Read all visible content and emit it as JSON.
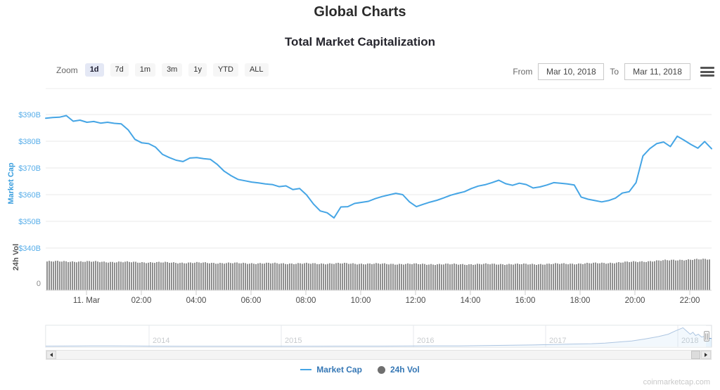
{
  "header": {
    "title": "Global Charts",
    "subtitle": "Total Market Capitalization"
  },
  "toolbar": {
    "zoom_label": "Zoom",
    "zoom_buttons": [
      {
        "label": "1d",
        "selected": true
      },
      {
        "label": "7d",
        "selected": false
      },
      {
        "label": "1m",
        "selected": false
      },
      {
        "label": "3m",
        "selected": false
      },
      {
        "label": "1y",
        "selected": false
      },
      {
        "label": "YTD",
        "selected": false
      },
      {
        "label": "ALL",
        "selected": false
      }
    ],
    "from_label": "From",
    "from_value": "Mar 10, 2018",
    "to_label": "To",
    "to_value": "Mar 11, 2018"
  },
  "legend": {
    "market_cap_label": "Market Cap",
    "vol_label": "24h Vol"
  },
  "watermark": "coinmarketcap.com",
  "colors": {
    "line_blue": "#45a5e5",
    "y_label_blue": "#56ade9",
    "y_title_blue": "#3a9ede",
    "volume_bar_gray": "#8f8f8f",
    "grid_gray": "#e8e8e8",
    "x_label_gray": "#4a4a4a",
    "year_label_gray": "#9aa0a6",
    "legend_text_blue": "#3577b5",
    "selected_zoom_bg": "#e4e8f5"
  },
  "chart_data": {
    "type": "line",
    "title": "Global Charts",
    "subtitle": "Total Market Capitalization",
    "legend_position": "bottom-center",
    "grid": "horizontal-only",
    "y_axis": {
      "title": "Market Cap",
      "tick_values": [
        390,
        380,
        370,
        360,
        350,
        340
      ],
      "tick_labels": [
        "$390B",
        "$380B",
        "$370B",
        "$360B",
        "$350B",
        "$340B"
      ],
      "unit": "USD billions",
      "ylim_shown": [
        340,
        395
      ]
    },
    "y2_axis": {
      "title": "24h Vol",
      "tick_labels": [
        "0"
      ]
    },
    "x_axis": {
      "tick_labels": [
        "11. Mar",
        "02:00",
        "04:00",
        "06:00",
        "08:00",
        "10:00",
        "12:00",
        "14:00",
        "16:00",
        "18:00",
        "20:00",
        "22:00"
      ],
      "range": "Mar 10 2018 22:30 to Mar 11 2018 22:45"
    },
    "market_cap_series": {
      "name": "Market Cap",
      "start": "Mar 10 2018 22:30",
      "interval_minutes": 15,
      "unit": "USD billions",
      "values": [
        388.6,
        388.9,
        389.0,
        389.6,
        387.5,
        387.9,
        387.1,
        387.4,
        386.8,
        387.1,
        386.7,
        386.5,
        384.3,
        380.7,
        379.4,
        379.1,
        377.8,
        375.1,
        373.9,
        372.9,
        372.4,
        373.7,
        373.9,
        373.5,
        373.2,
        371.3,
        368.8,
        367.1,
        365.7,
        365.2,
        364.7,
        364.4,
        364.0,
        363.8,
        363.0,
        363.3,
        361.9,
        362.3,
        359.9,
        356.5,
        353.9,
        353.2,
        351.3,
        355.4,
        355.5,
        356.7,
        357.1,
        357.5,
        358.5,
        359.3,
        359.9,
        360.5,
        360.0,
        357.3,
        355.5,
        356.4,
        357.2,
        357.9,
        358.8,
        359.8,
        360.5,
        361.1,
        362.3,
        363.2,
        363.7,
        364.5,
        365.4,
        364.1,
        363.5,
        364.3,
        363.8,
        362.5,
        362.9,
        363.6,
        364.5,
        364.3,
        364.0,
        363.6,
        359.1,
        358.3,
        357.8,
        357.3,
        357.8,
        358.7,
        360.6,
        361.1,
        364.5,
        374.5,
        377.2,
        379.1,
        379.7,
        378.0,
        381.9,
        380.4,
        378.8,
        377.4,
        379.9,
        377.2
      ]
    },
    "volume_series": {
      "name": "24h Vol",
      "note": "volume axis shows only the 0 label; bar heights are relative, sampled hourly",
      "relative_heights": [
        0.93,
        0.93,
        0.92,
        0.91,
        0.9,
        0.89,
        0.885,
        0.875,
        0.87,
        0.865,
        0.86,
        0.865,
        0.855,
        0.85,
        0.845,
        0.84,
        0.84,
        0.845,
        0.84,
        0.85,
        0.86,
        0.88,
        0.915,
        0.955,
        0.99,
        1.0
      ]
    },
    "navigator": {
      "year_labels": [
        "2014",
        "2015",
        "2016",
        "2017",
        "2018"
      ],
      "range": "Apr 2013 to Mar 2018",
      "relative_values": [
        [
          0.0,
          0.015
        ],
        [
          0.05,
          0.02
        ],
        [
          0.08,
          0.03
        ],
        [
          0.1,
          0.025
        ],
        [
          0.13,
          0.02
        ],
        [
          0.16,
          0.015
        ],
        [
          0.2,
          0.012
        ],
        [
          0.25,
          0.01
        ],
        [
          0.3,
          0.01
        ],
        [
          0.35,
          0.01
        ],
        [
          0.4,
          0.012
        ],
        [
          0.45,
          0.014
        ],
        [
          0.5,
          0.016
        ],
        [
          0.55,
          0.02
        ],
        [
          0.58,
          0.025
        ],
        [
          0.62,
          0.03
        ],
        [
          0.66,
          0.045
        ],
        [
          0.7,
          0.06
        ],
        [
          0.73,
          0.075
        ],
        [
          0.76,
          0.1
        ],
        [
          0.79,
          0.12
        ],
        [
          0.82,
          0.14
        ],
        [
          0.84,
          0.17
        ],
        [
          0.86,
          0.22
        ],
        [
          0.88,
          0.28
        ],
        [
          0.9,
          0.38
        ],
        [
          0.92,
          0.5
        ],
        [
          0.935,
          0.62
        ],
        [
          0.945,
          0.78
        ],
        [
          0.952,
          0.88
        ],
        [
          0.957,
          0.95
        ],
        [
          0.962,
          0.8
        ],
        [
          0.968,
          0.62
        ],
        [
          0.972,
          0.72
        ],
        [
          0.976,
          0.55
        ],
        [
          0.98,
          0.62
        ],
        [
          0.985,
          0.48
        ],
        [
          0.99,
          0.52
        ],
        [
          0.995,
          0.42
        ],
        [
          1.0,
          0.4
        ]
      ]
    }
  }
}
